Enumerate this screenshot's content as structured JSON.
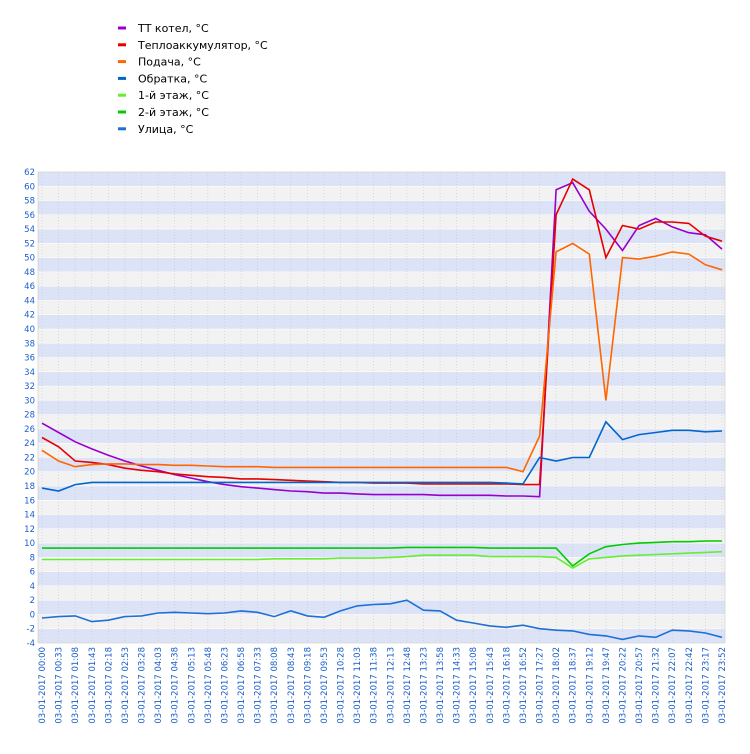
{
  "chart_data": {
    "type": "line",
    "categories": [
      "03-01-2017 00:00",
      "03-01-2017 00:33",
      "03-01-2017 01:08",
      "03-01-2017 01:43",
      "03-01-2017 02:18",
      "03-01-2017 02:53",
      "03-01-2017 03:28",
      "03-01-2017 04:03",
      "03-01-2017 04:38",
      "03-01-2017 05:13",
      "03-01-2017 05:48",
      "03-01-2017 06:23",
      "03-01-2017 06:58",
      "03-01-2017 07:33",
      "03-01-2017 08:08",
      "03-01-2017 08:43",
      "03-01-2017 09:18",
      "03-01-2017 09:53",
      "03-01-2017 10:28",
      "03-01-2017 11:03",
      "03-01-2017 11:38",
      "03-01-2017 12:13",
      "03-01-2017 12:48",
      "03-01-2017 13:23",
      "03-01-2017 13:58",
      "03-01-2017 14:33",
      "03-01-2017 15:08",
      "03-01-2017 15:43",
      "03-01-2017 16:18",
      "03-01-2017 16:52",
      "03-01-2017 17:27",
      "03-01-2017 18:02",
      "03-01-2017 18:37",
      "03-01-2017 19:12",
      "03-01-2017 19:47",
      "03-01-2017 20:22",
      "03-01-2017 20:57",
      "03-01-2017 21:32",
      "03-01-2017 22:07",
      "03-01-2017 22:42",
      "03-01-2017 23:17",
      "03-01-2017 23:52"
    ],
    "series": [
      {
        "name": "ТТ котел, °С",
        "color": "#9900cc",
        "values": [
          26.8,
          25.5,
          24.2,
          23.2,
          22.3,
          21.5,
          20.8,
          20.2,
          19.6,
          19.1,
          18.6,
          18.2,
          17.9,
          17.7,
          17.5,
          17.3,
          17.2,
          17.0,
          17.0,
          16.9,
          16.8,
          16.8,
          16.8,
          16.8,
          16.7,
          16.7,
          16.7,
          16.7,
          16.6,
          16.6,
          16.5,
          59.5,
          60.5,
          56.5,
          54,
          51,
          54.5,
          55.5,
          54.3,
          53.5,
          53.2,
          51.2
        ]
      },
      {
        "name": "Теплоаккумулятор, °С",
        "color": "#e60000",
        "values": [
          24.8,
          23.5,
          21.5,
          21.3,
          21.0,
          20.5,
          20.2,
          20.0,
          19.7,
          19.5,
          19.3,
          19.2,
          19.0,
          19.0,
          18.9,
          18.8,
          18.7,
          18.6,
          18.5,
          18.5,
          18.4,
          18.4,
          18.4,
          18.3,
          18.3,
          18.3,
          18.3,
          18.3,
          18.3,
          18.2,
          18.2,
          56,
          61,
          59.5,
          50,
          54.5,
          54,
          55,
          55,
          54.8,
          53,
          52.3
        ]
      },
      {
        "name": "Подача, °С",
        "color": "#ff6600",
        "values": [
          23,
          21.5,
          20.7,
          21,
          21.1,
          21.1,
          21,
          21,
          20.9,
          20.9,
          20.8,
          20.7,
          20.7,
          20.7,
          20.6,
          20.6,
          20.6,
          20.6,
          20.6,
          20.6,
          20.6,
          20.6,
          20.6,
          20.6,
          20.6,
          20.6,
          20.6,
          20.6,
          20.6,
          20.0,
          25,
          50.8,
          52,
          50.5,
          30,
          50,
          49.8,
          50.2,
          50.8,
          50.5,
          49,
          48.3
        ]
      },
      {
        "name": "Обратка, °С",
        "color": "#0066cc",
        "values": [
          17.7,
          17.3,
          18.2,
          18.5,
          18.5,
          18.5,
          18.5,
          18.5,
          18.5,
          18.5,
          18.5,
          18.5,
          18.5,
          18.5,
          18.5,
          18.5,
          18.5,
          18.5,
          18.5,
          18.5,
          18.5,
          18.5,
          18.5,
          18.5,
          18.5,
          18.5,
          18.5,
          18.5,
          18.4,
          18.3,
          22,
          21.5,
          22,
          22,
          27,
          24.5,
          25.2,
          25.5,
          25.8,
          25.8,
          25.6,
          25.7
        ]
      },
      {
        "name": "1-й этаж, °С",
        "color": "#66ee33",
        "values": [
          7.7,
          7.7,
          7.7,
          7.7,
          7.7,
          7.7,
          7.7,
          7.7,
          7.7,
          7.7,
          7.7,
          7.7,
          7.7,
          7.7,
          7.8,
          7.8,
          7.8,
          7.8,
          7.9,
          7.9,
          7.9,
          8.0,
          8.1,
          8.3,
          8.3,
          8.3,
          8.3,
          8.1,
          8.1,
          8.1,
          8.1,
          8.0,
          6.5,
          7.8,
          8.0,
          8.2,
          8.3,
          8.4,
          8.5,
          8.6,
          8.7,
          8.8
        ]
      },
      {
        "name": "2-й этаж, °С",
        "color": "#00cc00",
        "values": [
          9.3,
          9.3,
          9.3,
          9.3,
          9.3,
          9.3,
          9.3,
          9.3,
          9.3,
          9.3,
          9.3,
          9.3,
          9.3,
          9.3,
          9.3,
          9.3,
          9.3,
          9.3,
          9.3,
          9.3,
          9.3,
          9.3,
          9.4,
          9.4,
          9.4,
          9.4,
          9.4,
          9.3,
          9.3,
          9.3,
          9.3,
          9.3,
          6.8,
          8.5,
          9.5,
          9.8,
          10.0,
          10.1,
          10.2,
          10.2,
          10.3,
          10.3
        ]
      },
      {
        "name": "Улица, °С",
        "color": "#1f6fd6",
        "values": [
          -0.5,
          -0.3,
          -0.2,
          -1.0,
          -0.8,
          -0.3,
          -0.2,
          0.2,
          0.3,
          0.2,
          0.1,
          0.2,
          0.5,
          0.3,
          -0.3,
          0.5,
          -0.2,
          -0.4,
          0.5,
          1.2,
          1.4,
          1.5,
          2.0,
          0.6,
          0.5,
          -0.8,
          -1.2,
          -1.6,
          -1.8,
          -1.5,
          -2.0,
          -2.2,
          -2.3,
          -2.8,
          -3.0,
          -3.5,
          -3.0,
          -3.2,
          -2.2,
          -2.3,
          -2.6,
          -3.2
        ]
      }
    ],
    "ylim": [
      -4,
      62
    ],
    "yticks": [
      -4,
      -2,
      0,
      2,
      4,
      6,
      8,
      10,
      12,
      14,
      16,
      18,
      20,
      22,
      24,
      26,
      28,
      30,
      32,
      34,
      36,
      38,
      40,
      42,
      44,
      46,
      48,
      50,
      52,
      54,
      56,
      58,
      60,
      62
    ],
    "grid": true,
    "legend": "top-left"
  }
}
